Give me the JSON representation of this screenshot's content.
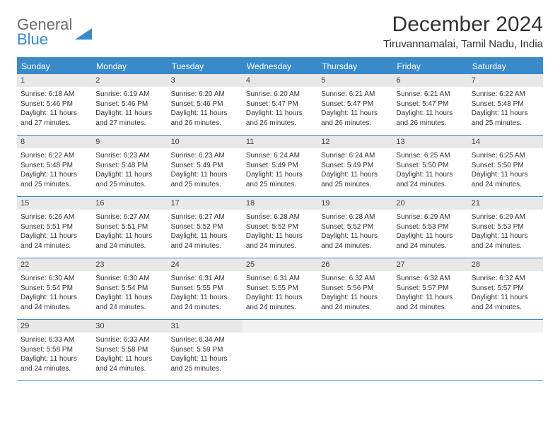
{
  "logo": {
    "line1": "General",
    "line2": "Blue"
  },
  "title": "December 2024",
  "location": "Tiruvannamalai, Tamil Nadu, India",
  "colors": {
    "accent": "#3a8ac9",
    "header_text": "#ffffff",
    "daynum_bg": "#e8e8e8",
    "text": "#333333",
    "logo_gray": "#6b6b6b"
  },
  "day_labels": [
    "Sunday",
    "Monday",
    "Tuesday",
    "Wednesday",
    "Thursday",
    "Friday",
    "Saturday"
  ],
  "weeks": [
    [
      {
        "n": "1",
        "sr": "6:18 AM",
        "ss": "5:46 PM",
        "dl": "11 hours and 27 minutes."
      },
      {
        "n": "2",
        "sr": "6:19 AM",
        "ss": "5:46 PM",
        "dl": "11 hours and 27 minutes."
      },
      {
        "n": "3",
        "sr": "6:20 AM",
        "ss": "5:46 PM",
        "dl": "11 hours and 26 minutes."
      },
      {
        "n": "4",
        "sr": "6:20 AM",
        "ss": "5:47 PM",
        "dl": "11 hours and 26 minutes."
      },
      {
        "n": "5",
        "sr": "6:21 AM",
        "ss": "5:47 PM",
        "dl": "11 hours and 26 minutes."
      },
      {
        "n": "6",
        "sr": "6:21 AM",
        "ss": "5:47 PM",
        "dl": "11 hours and 26 minutes."
      },
      {
        "n": "7",
        "sr": "6:22 AM",
        "ss": "5:48 PM",
        "dl": "11 hours and 25 minutes."
      }
    ],
    [
      {
        "n": "8",
        "sr": "6:22 AM",
        "ss": "5:48 PM",
        "dl": "11 hours and 25 minutes."
      },
      {
        "n": "9",
        "sr": "6:23 AM",
        "ss": "5:48 PM",
        "dl": "11 hours and 25 minutes."
      },
      {
        "n": "10",
        "sr": "6:23 AM",
        "ss": "5:49 PM",
        "dl": "11 hours and 25 minutes."
      },
      {
        "n": "11",
        "sr": "6:24 AM",
        "ss": "5:49 PM",
        "dl": "11 hours and 25 minutes."
      },
      {
        "n": "12",
        "sr": "6:24 AM",
        "ss": "5:49 PM",
        "dl": "11 hours and 25 minutes."
      },
      {
        "n": "13",
        "sr": "6:25 AM",
        "ss": "5:50 PM",
        "dl": "11 hours and 24 minutes."
      },
      {
        "n": "14",
        "sr": "6:25 AM",
        "ss": "5:50 PM",
        "dl": "11 hours and 24 minutes."
      }
    ],
    [
      {
        "n": "15",
        "sr": "6:26 AM",
        "ss": "5:51 PM",
        "dl": "11 hours and 24 minutes."
      },
      {
        "n": "16",
        "sr": "6:27 AM",
        "ss": "5:51 PM",
        "dl": "11 hours and 24 minutes."
      },
      {
        "n": "17",
        "sr": "6:27 AM",
        "ss": "5:52 PM",
        "dl": "11 hours and 24 minutes."
      },
      {
        "n": "18",
        "sr": "6:28 AM",
        "ss": "5:52 PM",
        "dl": "11 hours and 24 minutes."
      },
      {
        "n": "19",
        "sr": "6:28 AM",
        "ss": "5:52 PM",
        "dl": "11 hours and 24 minutes."
      },
      {
        "n": "20",
        "sr": "6:29 AM",
        "ss": "5:53 PM",
        "dl": "11 hours and 24 minutes."
      },
      {
        "n": "21",
        "sr": "6:29 AM",
        "ss": "5:53 PM",
        "dl": "11 hours and 24 minutes."
      }
    ],
    [
      {
        "n": "22",
        "sr": "6:30 AM",
        "ss": "5:54 PM",
        "dl": "11 hours and 24 minutes."
      },
      {
        "n": "23",
        "sr": "6:30 AM",
        "ss": "5:54 PM",
        "dl": "11 hours and 24 minutes."
      },
      {
        "n": "24",
        "sr": "6:31 AM",
        "ss": "5:55 PM",
        "dl": "11 hours and 24 minutes."
      },
      {
        "n": "25",
        "sr": "6:31 AM",
        "ss": "5:55 PM",
        "dl": "11 hours and 24 minutes."
      },
      {
        "n": "26",
        "sr": "6:32 AM",
        "ss": "5:56 PM",
        "dl": "11 hours and 24 minutes."
      },
      {
        "n": "27",
        "sr": "6:32 AM",
        "ss": "5:57 PM",
        "dl": "11 hours and 24 minutes."
      },
      {
        "n": "28",
        "sr": "6:32 AM",
        "ss": "5:57 PM",
        "dl": "11 hours and 24 minutes."
      }
    ],
    [
      {
        "n": "29",
        "sr": "6:33 AM",
        "ss": "5:58 PM",
        "dl": "11 hours and 24 minutes."
      },
      {
        "n": "30",
        "sr": "6:33 AM",
        "ss": "5:58 PM",
        "dl": "11 hours and 24 minutes."
      },
      {
        "n": "31",
        "sr": "6:34 AM",
        "ss": "5:59 PM",
        "dl": "11 hours and 25 minutes."
      },
      null,
      null,
      null,
      null
    ]
  ],
  "labels": {
    "sunrise": "Sunrise: ",
    "sunset": "Sunset: ",
    "daylight": "Daylight: "
  }
}
